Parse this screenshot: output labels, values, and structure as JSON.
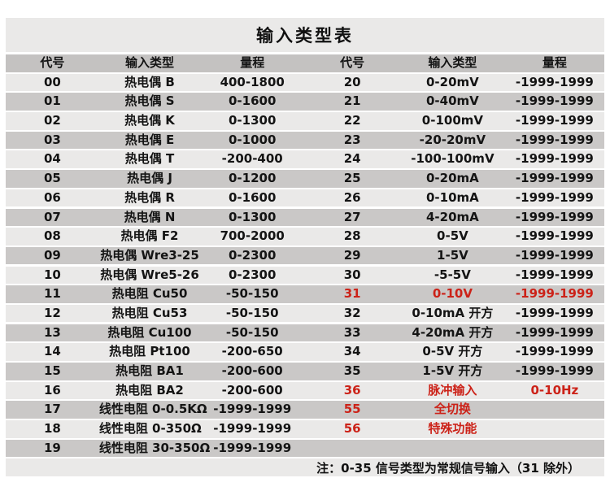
{
  "title": "输入类型表",
  "columns": [
    "代号",
    "输入类型",
    "量程",
    "代号",
    "输入类型",
    "量程"
  ],
  "colors": {
    "highlight_red": "#cc2218",
    "row_light": "#eae9e8",
    "row_dark": "#cac8c7",
    "header_gray": "#c4c2c1"
  },
  "rows": [
    {
      "left": {
        "code": "00",
        "type": "热电偶 B",
        "range": "400-1800"
      },
      "right": {
        "code": "20",
        "type": "0-20mV",
        "range": "-1999-1999",
        "red": false
      }
    },
    {
      "left": {
        "code": "01",
        "type": "热电偶 S",
        "range": "0-1600"
      },
      "right": {
        "code": "21",
        "type": "0-40mV",
        "range": "-1999-1999",
        "red": false
      }
    },
    {
      "left": {
        "code": "02",
        "type": "热电偶 K",
        "range": "0-1300"
      },
      "right": {
        "code": "22",
        "type": "0-100mV",
        "range": "-1999-1999",
        "red": false
      }
    },
    {
      "left": {
        "code": "03",
        "type": "热电偶 E",
        "range": "0-1000"
      },
      "right": {
        "code": "23",
        "type": "-20-20mV",
        "range": "-1999-1999",
        "red": false
      }
    },
    {
      "left": {
        "code": "04",
        "type": "热电偶 T",
        "range": "-200-400"
      },
      "right": {
        "code": "24",
        "type": "-100-100mV",
        "range": "-1999-1999",
        "red": false
      }
    },
    {
      "left": {
        "code": "05",
        "type": "热电偶 J",
        "range": "0-1200"
      },
      "right": {
        "code": "25",
        "type": "0-20mA",
        "range": "-1999-1999",
        "red": false
      }
    },
    {
      "left": {
        "code": "06",
        "type": "热电偶 R",
        "range": "0-1600"
      },
      "right": {
        "code": "26",
        "type": "0-10mA",
        "range": "-1999-1999",
        "red": false
      }
    },
    {
      "left": {
        "code": "07",
        "type": "热电偶 N",
        "range": "0-1300"
      },
      "right": {
        "code": "27",
        "type": "4-20mA",
        "range": "-1999-1999",
        "red": false
      }
    },
    {
      "left": {
        "code": "08",
        "type": "热电偶 F2",
        "range": "700-2000"
      },
      "right": {
        "code": "28",
        "type": "0-5V",
        "range": "-1999-1999",
        "red": false
      }
    },
    {
      "left": {
        "code": "09",
        "type": "热电偶 Wre3-25",
        "range": "0-2300"
      },
      "right": {
        "code": "29",
        "type": "1-5V",
        "range": "-1999-1999",
        "red": false
      }
    },
    {
      "left": {
        "code": "10",
        "type": "热电偶 Wre5-26",
        "range": "0-2300"
      },
      "right": {
        "code": "30",
        "type": "-5-5V",
        "range": "-1999-1999",
        "red": false
      }
    },
    {
      "left": {
        "code": "11",
        "type": "热电阻 Cu50",
        "range": "-50-150"
      },
      "right": {
        "code": "31",
        "type": "0-10V",
        "range": "-1999-1999",
        "red": true
      }
    },
    {
      "left": {
        "code": "12",
        "type": "热电阻 Cu53",
        "range": "-50-150"
      },
      "right": {
        "code": "32",
        "type": "0-10mA 开方",
        "range": "-1999-1999",
        "red": false
      }
    },
    {
      "left": {
        "code": "13",
        "type": "热电阻 Cu100",
        "range": "-50-150"
      },
      "right": {
        "code": "33",
        "type": "4-20mA 开方",
        "range": "-1999-1999",
        "red": false
      }
    },
    {
      "left": {
        "code": "14",
        "type": "热电阻 Pt100",
        "range": "-200-650"
      },
      "right": {
        "code": "34",
        "type": "0-5V 开方",
        "range": "-1999-1999",
        "red": false
      }
    },
    {
      "left": {
        "code": "15",
        "type": "热电阻 BA1",
        "range": "-200-600"
      },
      "right": {
        "code": "35",
        "type": "1-5V 开方",
        "range": "-1999-1999",
        "red": false
      }
    },
    {
      "left": {
        "code": "16",
        "type": "热电阻 BA2",
        "range": "-200-600"
      },
      "right": {
        "code": "36",
        "type": "脉冲输入",
        "range": "0-10Hz",
        "red": true
      }
    },
    {
      "left": {
        "code": "17",
        "type": "线性电阻 0-0.5KΩ",
        "range": "-1999-1999"
      },
      "right": {
        "code": "55",
        "type": "全切换",
        "range": "",
        "red": true
      }
    },
    {
      "left": {
        "code": "18",
        "type": "线性电阻 0-350Ω",
        "range": "-1999-1999"
      },
      "right": {
        "code": "56",
        "type": "特殊功能",
        "range": "",
        "red": true
      }
    },
    {
      "left": {
        "code": "19",
        "type": "线性电阻 30-350Ω",
        "range": "-1999-1999"
      },
      "right": {
        "code": "",
        "type": "",
        "range": "",
        "red": false
      }
    }
  ],
  "note": "注：0-35 信号类型为常规信号输入（31 除外）"
}
